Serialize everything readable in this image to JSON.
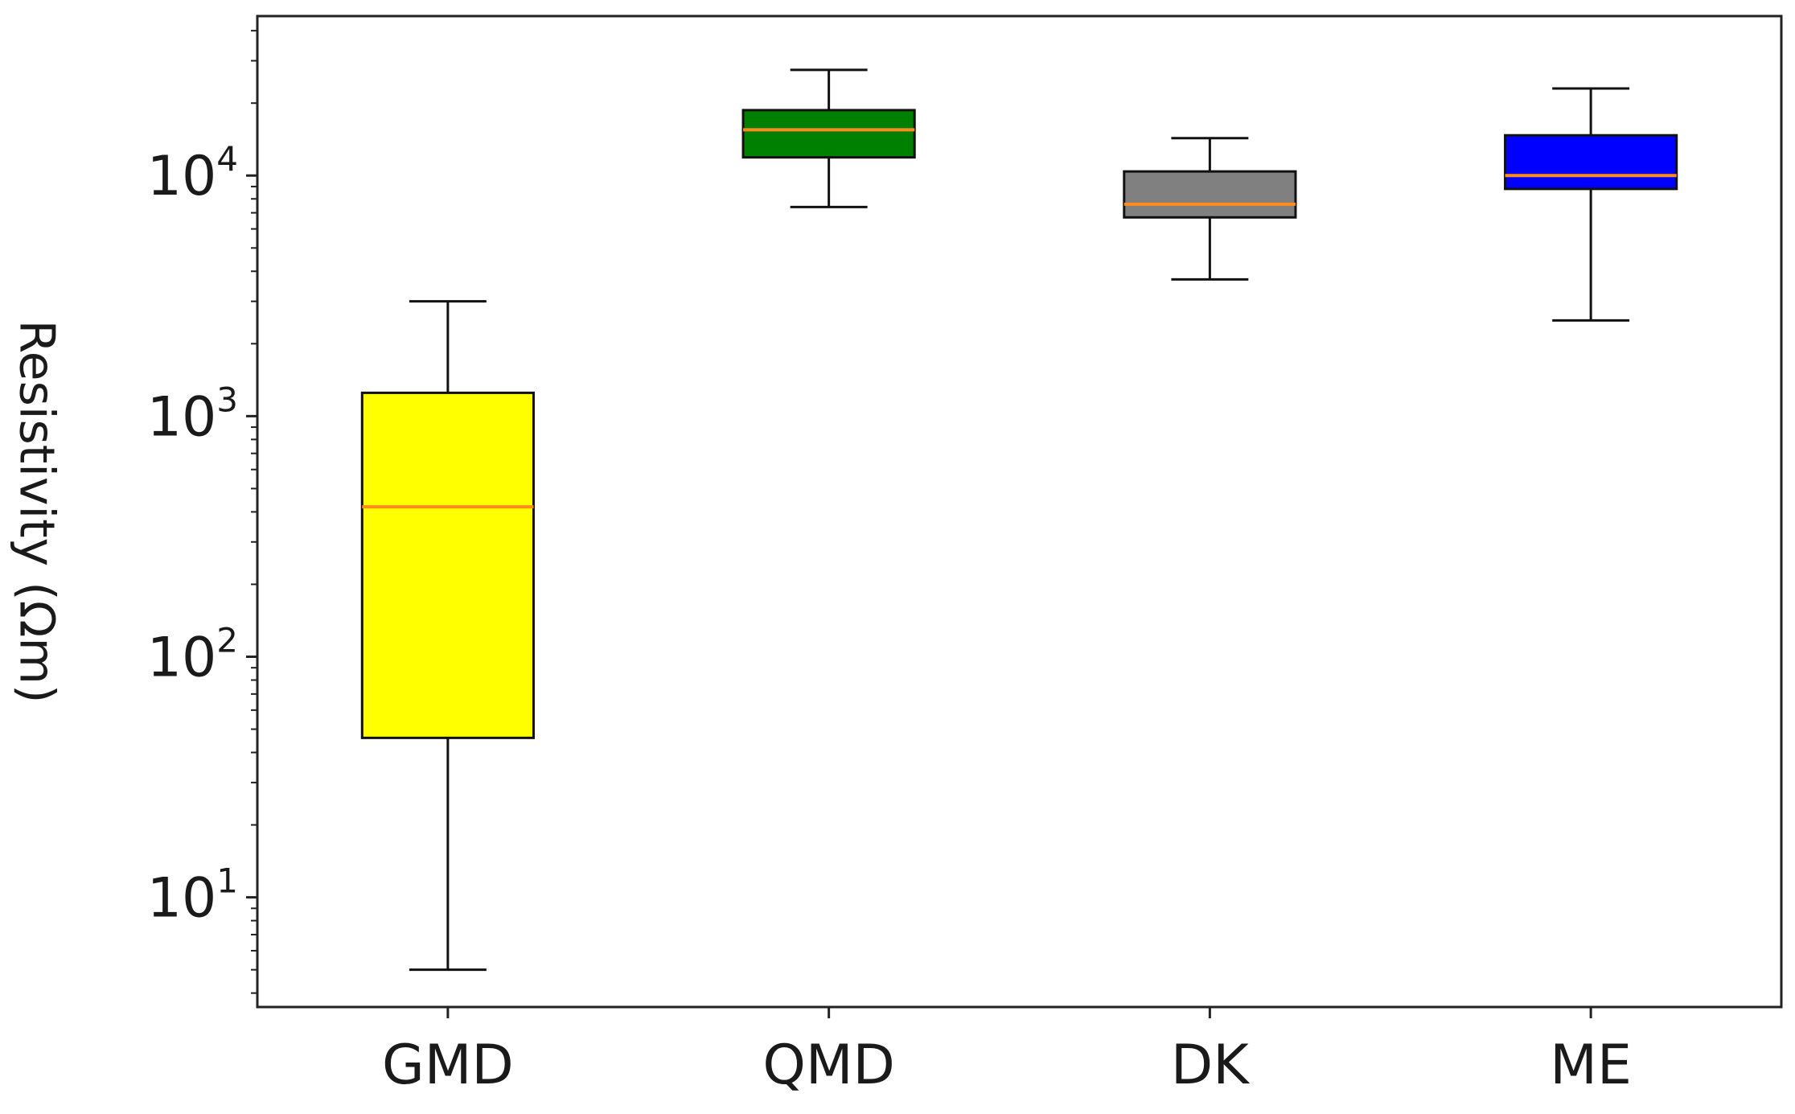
{
  "chart_data": {
    "type": "boxplot",
    "title": "",
    "xlabel": "",
    "ylabel": "Resistivity (Ωm)",
    "y_scale": "log",
    "ylim": [
      3.5,
      46000
    ],
    "y_ticks": [
      {
        "value": 10,
        "base": "10",
        "exp": "1"
      },
      {
        "value": 100,
        "base": "10",
        "exp": "2"
      },
      {
        "value": 1000,
        "base": "10",
        "exp": "3"
      },
      {
        "value": 10000,
        "base": "10",
        "exp": "4"
      }
    ],
    "grid": false,
    "legend": "none",
    "median_color": "#ff8c1a",
    "categories": [
      "GMD",
      "QMD",
      "DK",
      "ME"
    ],
    "boxes": [
      {
        "name": "GMD",
        "color": "#ffff00",
        "whisker_low": 5,
        "q1": 46,
        "median": 420,
        "q3": 1250,
        "whisker_high": 3000
      },
      {
        "name": "QMD",
        "color": "#008000",
        "whisker_low": 7400,
        "q1": 11900,
        "median": 15500,
        "q3": 18700,
        "whisker_high": 27500
      },
      {
        "name": "DK",
        "color": "#808080",
        "whisker_low": 3700,
        "q1": 6700,
        "median": 7600,
        "q3": 10400,
        "whisker_high": 14300
      },
      {
        "name": "ME",
        "color": "#0000ff",
        "whisker_low": 2500,
        "q1": 8800,
        "median": 10000,
        "q3": 14700,
        "whisker_high": 23000
      }
    ]
  }
}
